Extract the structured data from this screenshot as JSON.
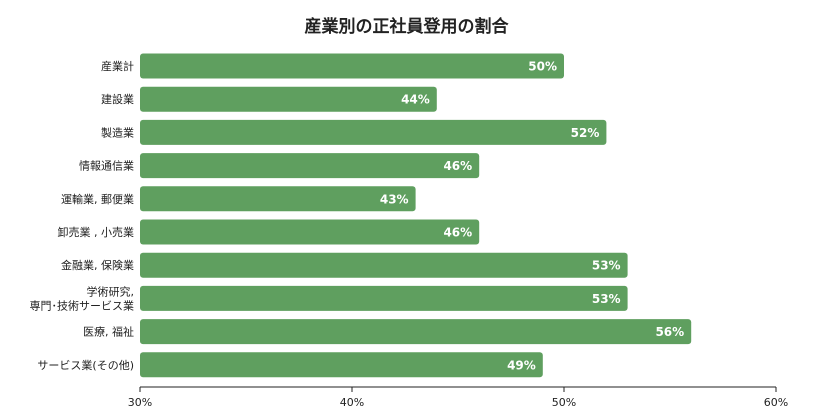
{
  "chart_data": {
    "type": "bar",
    "orientation": "horizontal",
    "title": "産業別の正社員登用の割合",
    "categories": [
      "産業計",
      "建設業",
      "製造業",
      "情報通信業",
      "運輸業, 郵便業",
      "卸売業 , 小売業",
      "金融業, 保険業",
      "学術研究,\n専門･技術サービス業",
      "医療, 福祉",
      "サービス業(その他)"
    ],
    "values": [
      50,
      44,
      52,
      46,
      43,
      46,
      53,
      53,
      56,
      49
    ],
    "value_labels": [
      "50%",
      "44%",
      "52%",
      "46%",
      "43%",
      "46%",
      "53%",
      "53%",
      "56%",
      "49%"
    ],
    "xlim": [
      30,
      60
    ],
    "xticks": [
      30,
      40,
      50,
      60
    ],
    "xtick_labels": [
      "30%",
      "40%",
      "50%",
      "60%"
    ],
    "xlabel": "",
    "ylabel": "",
    "grid": false,
    "legend": "none",
    "colors": {
      "bar": "#5f9f5f",
      "bar_label": "#ffffff",
      "axis": "#222222",
      "text": "#222222"
    }
  }
}
